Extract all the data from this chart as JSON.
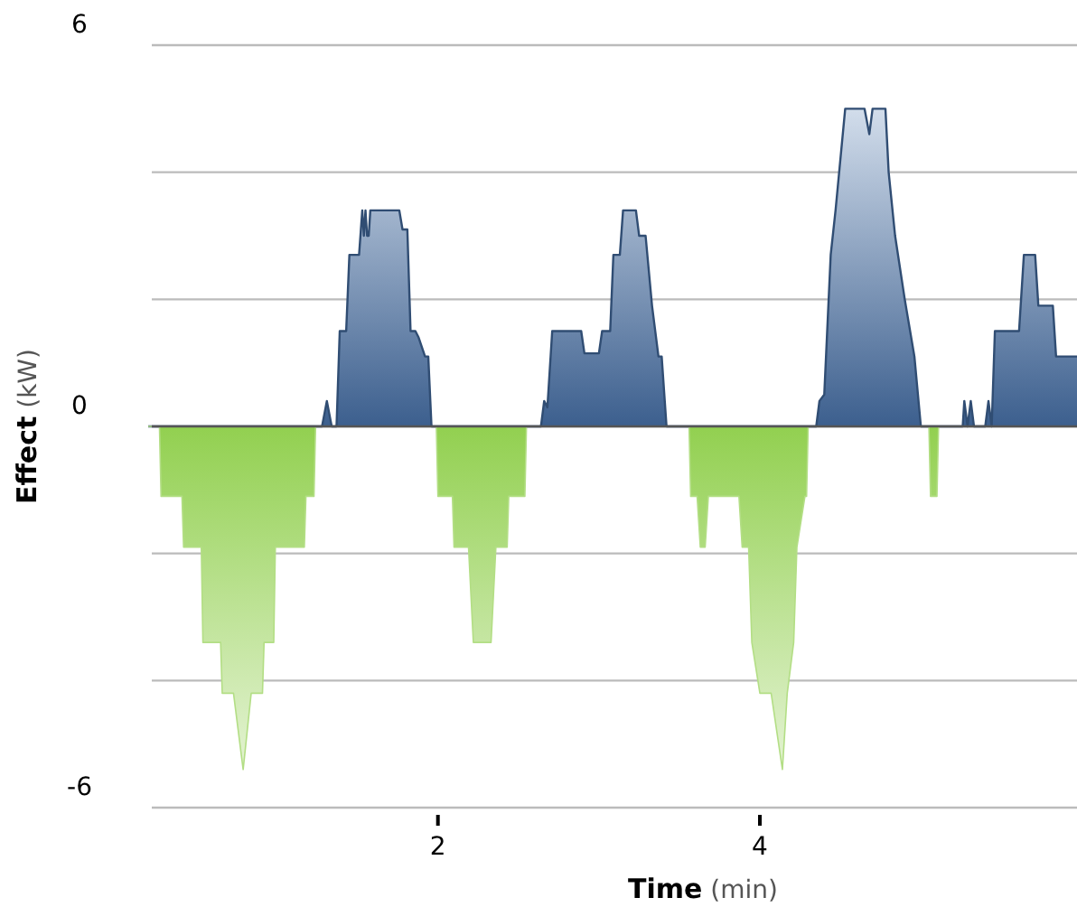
{
  "chart_data": {
    "type": "area",
    "xlabel": "Time (min)",
    "ylabel": "Effect (kW)",
    "xlim": [
      0.2,
      5.97
    ],
    "ylim": [
      -6,
      6
    ],
    "xticks": [
      2,
      4
    ],
    "yticks": [
      {
        "value": -6,
        "label": "-6"
      },
      {
        "value": -4,
        "label": null
      },
      {
        "value": -2,
        "label": null
      },
      {
        "value": 0,
        "label": "0"
      },
      {
        "value": 2,
        "label": null
      },
      {
        "value": 4,
        "label": null
      },
      {
        "value": 6,
        "label": "6"
      }
    ],
    "grid": "y",
    "series": [
      {
        "color": "#4a76b0",
        "x": [
          0.2,
          1.28,
          1.31,
          1.34,
          1.37,
          1.39,
          1.43,
          1.45,
          1.51,
          1.53,
          1.54,
          1.55,
          1.56,
          1.57,
          1.58,
          1.76,
          1.78,
          1.81,
          1.83,
          1.86,
          1.88,
          1.92,
          1.94,
          1.96,
          2.64,
          2.66,
          2.68,
          2.71,
          2.89,
          2.91,
          3.0,
          3.02,
          3.07,
          3.09,
          3.13,
          3.15,
          3.23,
          3.25,
          3.29,
          3.33,
          3.37,
          3.39,
          3.42,
          4.35,
          4.37,
          4.4,
          4.44,
          4.47,
          4.53,
          4.65,
          4.68,
          4.7,
          4.78,
          4.8,
          4.84,
          4.9,
          4.96,
          5.0,
          5.26,
          5.27,
          5.29,
          5.31,
          5.33,
          5.4,
          5.42,
          5.44,
          5.46,
          5.49,
          5.61,
          5.64,
          5.71,
          5.73,
          5.82,
          5.84,
          5.97
        ],
        "values": [
          0,
          0,
          0.4,
          0,
          0,
          1.5,
          1.5,
          2.7,
          2.7,
          3.4,
          3.0,
          3.4,
          3.0,
          3.0,
          3.4,
          3.4,
          3.1,
          3.1,
          1.5,
          1.5,
          1.4,
          1.1,
          1.1,
          0,
          0,
          0.4,
          0.3,
          1.5,
          1.5,
          1.15,
          1.15,
          1.5,
          1.5,
          2.7,
          2.7,
          3.4,
          3.4,
          3.0,
          3.0,
          1.9,
          1.1,
          1.1,
          0,
          0,
          0.4,
          0.5,
          2.7,
          3.4,
          5.0,
          5.0,
          4.6,
          5.0,
          5.0,
          4.0,
          3.0,
          2.0,
          1.1,
          0,
          0,
          0.4,
          0,
          0.4,
          0,
          0,
          0.4,
          0,
          1.5,
          1.5,
          1.5,
          2.7,
          2.7,
          1.9,
          1.9,
          1.1,
          1.1
        ]
      },
      {
        "color": "#92d050",
        "x": [
          0.2,
          0.27,
          0.28,
          0.41,
          0.42,
          0.53,
          0.54,
          0.65,
          0.66,
          0.73,
          0.79,
          0.84,
          0.91,
          0.92,
          0.98,
          0.99,
          1.17,
          1.18,
          1.23,
          1.24,
          1.99,
          2.0,
          2.09,
          2.1,
          2.19,
          2.22,
          2.33,
          2.36,
          2.43,
          2.44,
          2.54,
          2.55,
          3.56,
          3.57,
          3.61,
          3.63,
          3.66,
          3.68,
          3.87,
          3.89,
          3.93,
          3.95,
          4.0,
          4.07,
          4.14,
          4.17,
          4.21,
          4.23,
          4.28,
          4.29,
          4.3,
          5.05,
          5.06,
          5.1,
          5.11,
          5.97
        ],
        "values": [
          0,
          0,
          -1.1,
          -1.1,
          -1.9,
          -1.9,
          -3.4,
          -3.4,
          -4.2,
          -4.2,
          -5.4,
          -4.2,
          -4.2,
          -3.4,
          -3.4,
          -1.9,
          -1.9,
          -1.1,
          -1.1,
          0,
          0,
          -1.1,
          -1.1,
          -1.9,
          -1.9,
          -3.4,
          -3.4,
          -1.9,
          -1.9,
          -1.1,
          -1.1,
          0,
          0,
          -1.1,
          -1.1,
          -1.9,
          -1.9,
          -1.1,
          -1.1,
          -1.9,
          -1.9,
          -3.4,
          -4.2,
          -4.2,
          -5.4,
          -4.2,
          -3.4,
          -1.9,
          -1.1,
          -1.1,
          0,
          0,
          -1.1,
          -1.1,
          0,
          0
        ]
      }
    ]
  }
}
